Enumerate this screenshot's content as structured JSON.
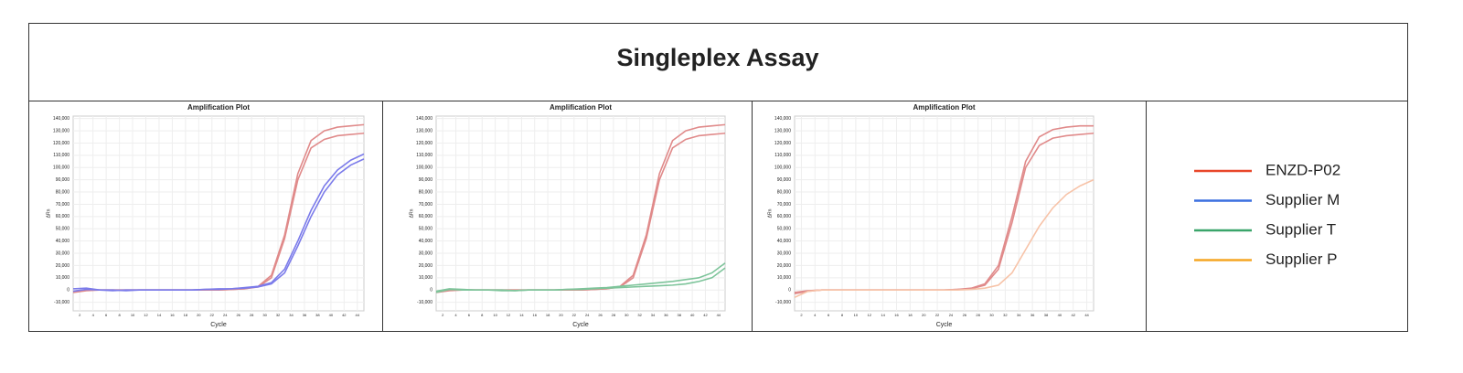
{
  "title": "Singleplex Assay",
  "legend": [
    {
      "name": "ENZD-P02",
      "color": "#e8472a"
    },
    {
      "name": "Supplier M",
      "color": "#3b6fe0"
    },
    {
      "name": "Supplier T",
      "color": "#3aa56a"
    },
    {
      "name": "Supplier P",
      "color": "#f5a623"
    }
  ],
  "chart_data": [
    {
      "type": "line",
      "title": "Amplification Plot",
      "x_label": "Cycle",
      "y_label": "ΔRn",
      "x": [
        1,
        3,
        5,
        7,
        9,
        11,
        13,
        15,
        17,
        19,
        21,
        23,
        25,
        27,
        29,
        31,
        33,
        35,
        37,
        39,
        41,
        43,
        45
      ],
      "xlim": [
        1,
        45
      ],
      "xticks": [
        2,
        4,
        6,
        8,
        10,
        12,
        14,
        16,
        18,
        20,
        22,
        24,
        26,
        28,
        30,
        32,
        34,
        36,
        38,
        40,
        42,
        44
      ],
      "ylim": [
        -17000,
        142000
      ],
      "yticks": [
        {
          "value": -10000,
          "label": "-10,000"
        },
        0,
        {
          "value": 10000,
          "label": "10,000"
        },
        {
          "value": 20000,
          "label": "20,000"
        },
        {
          "value": 30000,
          "label": "30,000"
        },
        {
          "value": 40000,
          "label": "40,000"
        },
        {
          "value": 50000,
          "label": "50,000"
        },
        {
          "value": 60000,
          "label": "60,000"
        },
        {
          "value": 70000,
          "label": "70,000"
        },
        {
          "value": 80000,
          "label": "80,000"
        },
        {
          "value": 90000,
          "label": "90,000"
        },
        {
          "value": 100000,
          "label": "100,000"
        },
        {
          "value": 110000,
          "label": "110,000"
        },
        {
          "value": 120000,
          "label": "120,000"
        },
        {
          "value": 130000,
          "label": "130,000"
        },
        {
          "value": 140000,
          "label": "140,000"
        }
      ],
      "grid": true,
      "series": [
        {
          "color": "#e08a8a",
          "values": [
            -2000,
            -500,
            0,
            0,
            0,
            0,
            0,
            0,
            0,
            0,
            0,
            0,
            500,
            1000,
            3000,
            12000,
            45000,
            95000,
            122000,
            130000,
            133000,
            134000,
            135000
          ]
        },
        {
          "color": "#e08a8a",
          "values": [
            -1000,
            0,
            0,
            0,
            0,
            0,
            0,
            0,
            0,
            0,
            0,
            0,
            500,
            1000,
            2500,
            10000,
            42000,
            90000,
            116000,
            123000,
            126000,
            127000,
            128000
          ]
        },
        {
          "color": "#7b7bea",
          "values": [
            1000,
            1500,
            0,
            0,
            -500,
            0,
            0,
            0,
            0,
            0,
            500,
            1000,
            1000,
            2000,
            3000,
            6000,
            17000,
            40000,
            65000,
            85000,
            98000,
            106000,
            111000
          ]
        },
        {
          "color": "#7b7bea",
          "values": [
            -1000,
            500,
            0,
            -500,
            0,
            0,
            0,
            0,
            0,
            0,
            500,
            500,
            1000,
            1500,
            2500,
            5000,
            14000,
            36000,
            60000,
            80000,
            94000,
            102000,
            107000
          ]
        }
      ]
    },
    {
      "type": "line",
      "title": "Amplification Plot",
      "x_label": "Cycle",
      "y_label": "ΔRn",
      "x": [
        1,
        3,
        5,
        7,
        9,
        11,
        13,
        15,
        17,
        19,
        21,
        23,
        25,
        27,
        29,
        31,
        33,
        35,
        37,
        39,
        41,
        43,
        45
      ],
      "xlim": [
        1,
        45
      ],
      "xticks": [
        2,
        4,
        6,
        8,
        10,
        12,
        14,
        16,
        18,
        20,
        22,
        24,
        26,
        28,
        30,
        32,
        34,
        36,
        38,
        40,
        42,
        44
      ],
      "ylim": [
        -17000,
        142000
      ],
      "yticks": [
        {
          "value": -10000,
          "label": "-10,000"
        },
        0,
        {
          "value": 10000,
          "label": "10,000"
        },
        {
          "value": 20000,
          "label": "20,000"
        },
        {
          "value": 30000,
          "label": "30,000"
        },
        {
          "value": 40000,
          "label": "40,000"
        },
        {
          "value": 50000,
          "label": "50,000"
        },
        {
          "value": 60000,
          "label": "60,000"
        },
        {
          "value": 70000,
          "label": "70,000"
        },
        {
          "value": 80000,
          "label": "80,000"
        },
        {
          "value": 90000,
          "label": "90,000"
        },
        {
          "value": 100000,
          "label": "100,000"
        },
        {
          "value": 110000,
          "label": "110,000"
        },
        {
          "value": 120000,
          "label": "120,000"
        },
        {
          "value": 130000,
          "label": "130,000"
        },
        {
          "value": 140000,
          "label": "140,000"
        }
      ],
      "grid": true,
      "series": [
        {
          "color": "#e08a8a",
          "values": [
            -2000,
            -500,
            0,
            0,
            0,
            0,
            0,
            0,
            0,
            0,
            0,
            0,
            500,
            1000,
            3000,
            12000,
            45000,
            95000,
            122000,
            130000,
            133000,
            134000,
            135000
          ]
        },
        {
          "color": "#e08a8a",
          "values": [
            -1000,
            0,
            0,
            0,
            0,
            0,
            0,
            0,
            0,
            0,
            0,
            0,
            500,
            1000,
            2500,
            10000,
            42000,
            90000,
            116000,
            123000,
            126000,
            127000,
            128000
          ]
        },
        {
          "color": "#7dc49a",
          "values": [
            -1000,
            1000,
            500,
            0,
            0,
            0,
            -500,
            0,
            0,
            0,
            500,
            1000,
            1500,
            2000,
            3000,
            4000,
            5000,
            6000,
            7000,
            8500,
            10000,
            14000,
            22000
          ]
        },
        {
          "color": "#7dc49a",
          "values": [
            -2000,
            500,
            0,
            0,
            0,
            -500,
            -500,
            0,
            0,
            0,
            500,
            500,
            1000,
            1500,
            2000,
            2500,
            3000,
            3500,
            4000,
            5000,
            7000,
            10000,
            18000
          ]
        }
      ]
    },
    {
      "type": "line",
      "title": "Amplification Plot",
      "x_label": "Cycle",
      "y_label": "ΔRn",
      "x": [
        1,
        3,
        5,
        7,
        9,
        11,
        13,
        15,
        17,
        19,
        21,
        23,
        25,
        27,
        29,
        31,
        33,
        35,
        37,
        39,
        41,
        43,
        45
      ],
      "xlim": [
        1,
        45
      ],
      "xticks": [
        2,
        4,
        6,
        8,
        10,
        12,
        14,
        16,
        18,
        20,
        22,
        24,
        26,
        28,
        30,
        32,
        34,
        36,
        38,
        40,
        42,
        44
      ],
      "ylim": [
        -17000,
        142000
      ],
      "yticks": [
        {
          "value": -10000,
          "label": "-10,000"
        },
        0,
        {
          "value": 10000,
          "label": "10,000"
        },
        {
          "value": 20000,
          "label": "20,000"
        },
        {
          "value": 30000,
          "label": "30,000"
        },
        {
          "value": 40000,
          "label": "40,000"
        },
        {
          "value": 50000,
          "label": "50,000"
        },
        {
          "value": 60000,
          "label": "60,000"
        },
        {
          "value": 70000,
          "label": "70,000"
        },
        {
          "value": 80000,
          "label": "80,000"
        },
        {
          "value": 90000,
          "label": "90,000"
        },
        {
          "value": 100000,
          "label": "100,000"
        },
        {
          "value": 110000,
          "label": "110,000"
        },
        {
          "value": 120000,
          "label": "120,000"
        },
        {
          "value": 130000,
          "label": "130,000"
        },
        {
          "value": 140000,
          "label": "140,000"
        }
      ],
      "grid": true,
      "series": [
        {
          "color": "#e08a8a",
          "values": [
            -3000,
            -1000,
            0,
            0,
            0,
            0,
            0,
            0,
            0,
            0,
            0,
            0,
            500,
            1500,
            5000,
            20000,
            60000,
            105000,
            125000,
            131000,
            133000,
            134000,
            134000
          ]
        },
        {
          "color": "#e08a8a",
          "values": [
            -2000,
            -500,
            0,
            0,
            0,
            0,
            0,
            0,
            0,
            0,
            0,
            0,
            500,
            1000,
            4000,
            17000,
            55000,
            100000,
            118000,
            124000,
            126000,
            127000,
            128000
          ]
        },
        {
          "color": "#f7c3a8",
          "values": [
            -6000,
            -1000,
            0,
            0,
            0,
            0,
            0,
            0,
            0,
            0,
            0,
            0,
            0,
            500,
            1500,
            4000,
            14000,
            33000,
            52000,
            67000,
            78000,
            85000,
            90000
          ]
        }
      ]
    }
  ]
}
